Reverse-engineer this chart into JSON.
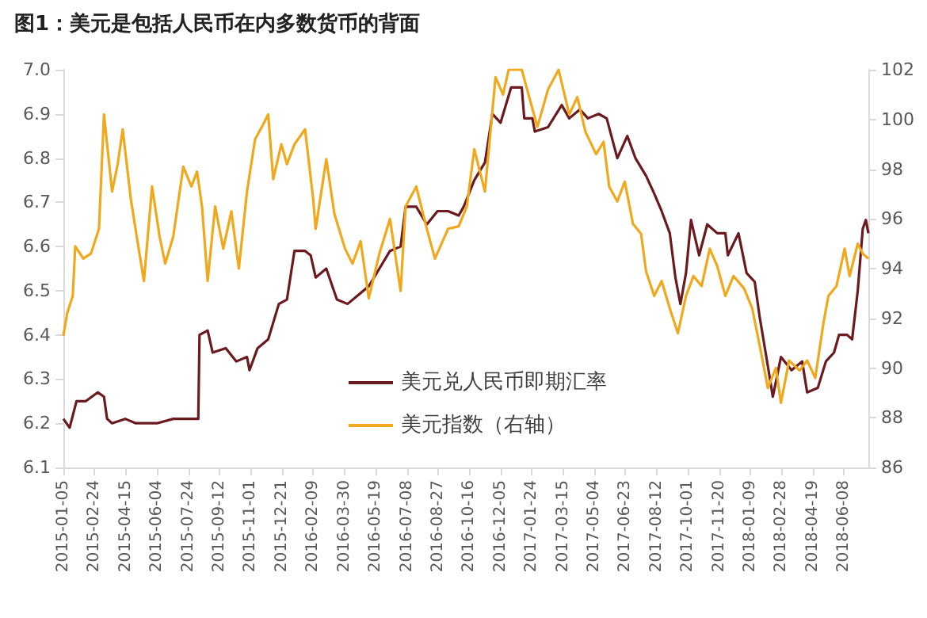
{
  "chart_data": {
    "type": "line",
    "title": "图1：美元是包括人民币在内多数货币的背面",
    "xlim": [
      "2015-01-05",
      "2018-07-17"
    ],
    "xticks": [
      "2015-01-05",
      "2015-02-24",
      "2015-04-15",
      "2015-06-04",
      "2015-07-24",
      "2015-09-12",
      "2015-11-01",
      "2015-12-21",
      "2016-02-09",
      "2016-03-30",
      "2016-05-19",
      "2016-07-08",
      "2016-08-27",
      "2016-10-16",
      "2016-12-05",
      "2017-01-24",
      "2017-03-15",
      "2017-05-04",
      "2017-06-23",
      "2017-08-12",
      "2017-10-01",
      "2017-11-20",
      "2018-01-09",
      "2018-02-28",
      "2018-04-19",
      "2018-06-08"
    ],
    "ylim": [
      6.1,
      7.0
    ],
    "yticks": [
      6.1,
      6.2,
      6.3,
      6.4,
      6.5,
      6.6,
      6.7,
      6.8,
      6.9,
      {
        "value": 7.0,
        "label": "7.0"
      }
    ],
    "y2lim": [
      86,
      102
    ],
    "y2ticks": [
      86,
      88,
      90,
      92,
      94,
      96,
      98,
      100,
      102
    ],
    "legend": "bottom",
    "grid": false,
    "marker": "none",
    "line_style": "solid",
    "series": [
      {
        "name": "美元兑人民币即期汇率",
        "color": "#6b1a1f",
        "x": [
          "2015-01-05",
          "2015-01-15",
          "2015-01-26",
          "2015-02-10",
          "2015-03-01",
          "2015-03-11",
          "2015-03-16",
          "2015-03-24",
          "2015-04-14",
          "2015-05-01",
          "2015-06-04",
          "2015-06-30",
          "2015-08-09",
          "2015-08-11",
          "2015-08-24",
          "2015-09-01",
          "2015-09-22",
          "2015-10-09",
          "2015-10-26",
          "2015-10-30",
          "2015-11-12",
          "2015-11-29",
          "2015-12-16",
          "2015-12-29",
          "2016-01-10",
          "2016-01-27",
          "2016-02-05",
          "2016-02-13",
          "2016-03-01",
          "2016-03-18",
          "2016-04-04",
          "2016-04-21",
          "2016-05-08",
          "2016-05-25",
          "2016-06-11",
          "2016-06-28",
          "2016-07-06",
          "2016-07-23",
          "2016-08-09",
          "2016-08-26",
          "2016-09-12",
          "2016-09-29",
          "2016-10-07",
          "2016-10-24",
          "2016-11-10",
          "2016-11-22",
          "2016-12-05",
          "2016-12-22",
          "2017-01-08",
          "2017-01-12",
          "2017-01-25",
          "2017-01-29",
          "2017-02-19",
          "2017-03-13",
          "2017-03-25",
          "2017-04-11",
          "2017-04-24",
          "2017-05-11",
          "2017-05-24",
          "2017-06-10",
          "2017-06-26",
          "2017-07-09",
          "2017-07-26",
          "2017-08-08",
          "2017-08-20",
          "2017-09-02",
          "2017-09-11",
          "2017-09-19",
          "2017-09-28",
          "2017-10-06",
          "2017-10-19",
          "2017-11-01",
          "2017-11-17",
          "2017-11-30",
          "2017-12-04",
          "2017-12-21",
          "2018-01-03",
          "2018-01-16",
          "2018-01-24",
          "2018-02-06",
          "2018-02-14",
          "2018-02-27",
          "2018-03-16",
          "2018-04-02",
          "2018-04-10",
          "2018-04-27",
          "2018-05-10",
          "2018-05-23",
          "2018-05-31",
          "2018-06-13",
          "2018-06-21",
          "2018-06-30",
          "2018-07-08",
          "2018-07-13",
          "2018-07-17"
        ],
        "values": [
          6.21,
          6.19,
          6.25,
          6.25,
          6.27,
          6.26,
          6.21,
          6.2,
          6.21,
          6.2,
          6.2,
          6.21,
          6.21,
          6.4,
          6.41,
          6.36,
          6.37,
          6.34,
          6.35,
          6.32,
          6.37,
          6.39,
          6.47,
          6.48,
          6.59,
          6.59,
          6.58,
          6.53,
          6.55,
          6.48,
          6.47,
          6.49,
          6.51,
          6.55,
          6.59,
          6.6,
          6.69,
          6.69,
          6.65,
          6.68,
          6.68,
          6.67,
          6.69,
          6.75,
          6.79,
          6.9,
          6.88,
          6.96,
          6.96,
          6.89,
          6.89,
          6.86,
          6.87,
          6.92,
          6.89,
          6.91,
          6.89,
          6.9,
          6.89,
          6.8,
          6.85,
          6.8,
          6.76,
          6.72,
          6.68,
          6.63,
          6.53,
          6.47,
          6.54,
          6.66,
          6.58,
          6.65,
          6.63,
          6.63,
          6.58,
          6.63,
          6.54,
          6.52,
          6.44,
          6.33,
          6.26,
          6.35,
          6.32,
          6.34,
          6.27,
          6.28,
          6.34,
          6.36,
          6.4,
          6.4,
          6.39,
          6.5,
          6.64,
          6.66,
          6.63
        ]
      },
      {
        "name": "美元指数（右轴）",
        "color": "#f0a81c",
        "axis": "y2",
        "x": [
          "2015-01-05",
          "2015-01-11",
          "2015-01-20",
          "2015-01-24",
          "2015-02-06",
          "2015-02-18",
          "2015-03-03",
          "2015-03-11",
          "2015-03-24",
          "2015-04-02",
          "2015-04-10",
          "2015-04-23",
          "2015-05-03",
          "2015-05-14",
          "2015-05-27",
          "2015-06-08",
          "2015-06-17",
          "2015-06-30",
          "2015-07-16",
          "2015-07-29",
          "2015-08-07",
          "2015-08-15",
          "2015-08-24",
          "2015-09-05",
          "2015-09-18",
          "2015-10-01",
          "2015-10-13",
          "2015-10-26",
          "2015-11-08",
          "2015-11-21",
          "2015-11-29",
          "2015-12-07",
          "2015-12-20",
          "2015-12-29",
          "2016-01-10",
          "2016-01-27",
          "2016-02-09",
          "2016-02-13",
          "2016-03-01",
          "2016-03-14",
          "2016-03-31",
          "2016-04-12",
          "2016-04-25",
          "2016-05-08",
          "2016-05-25",
          "2016-06-11",
          "2016-06-28",
          "2016-07-06",
          "2016-07-23",
          "2016-08-09",
          "2016-08-22",
          "2016-09-12",
          "2016-09-29",
          "2016-10-12",
          "2016-10-24",
          "2016-11-10",
          "2016-11-27",
          "2016-12-09",
          "2016-12-18",
          "2017-01-08",
          "2017-01-21",
          "2017-02-02",
          "2017-02-19",
          "2017-03-08",
          "2017-03-25",
          "2017-04-07",
          "2017-04-20",
          "2017-05-07",
          "2017-05-19",
          "2017-05-28",
          "2017-06-10",
          "2017-06-22",
          "2017-07-05",
          "2017-07-18",
          "2017-07-26",
          "2017-08-08",
          "2017-08-20",
          "2017-09-02",
          "2017-09-15",
          "2017-09-28",
          "2017-10-10",
          "2017-10-23",
          "2017-11-05",
          "2017-11-17",
          "2017-11-30",
          "2017-12-13",
          "2017-12-30",
          "2018-01-12",
          "2018-01-24",
          "2018-02-06",
          "2018-02-19",
          "2018-02-27",
          "2018-03-12",
          "2018-03-29",
          "2018-04-10",
          "2018-04-23",
          "2018-05-06",
          "2018-05-14",
          "2018-05-27",
          "2018-06-09",
          "2018-06-17",
          "2018-06-30",
          "2018-07-08",
          "2018-07-17"
        ],
        "values": [
          91.3,
          92.2,
          92.9,
          94.9,
          94.4,
          94.6,
          95.6,
          100.2,
          97.1,
          98.2,
          99.6,
          96.8,
          95.2,
          93.5,
          97.3,
          95.3,
          94.2,
          95.3,
          98.1,
          97.3,
          97.9,
          96.5,
          93.5,
          96.5,
          94.8,
          96.3,
          94.0,
          97.1,
          99.2,
          99.8,
          100.2,
          97.6,
          99.0,
          98.2,
          99.0,
          99.6,
          96.8,
          95.6,
          98.4,
          96.2,
          94.8,
          94.2,
          95.1,
          92.8,
          94.6,
          96.0,
          93.1,
          96.5,
          97.3,
          95.6,
          94.4,
          95.6,
          95.7,
          96.5,
          98.8,
          97.1,
          101.7,
          101.0,
          102.0,
          102.0,
          100.8,
          99.7,
          101.2,
          102.0,
          100.2,
          100.9,
          99.5,
          98.6,
          99.1,
          97.3,
          96.7,
          97.5,
          95.8,
          95.4,
          93.9,
          92.9,
          93.5,
          92.4,
          91.4,
          92.9,
          93.7,
          93.3,
          94.8,
          94.1,
          92.9,
          93.7,
          93.2,
          92.4,
          90.9,
          89.2,
          90.0,
          88.6,
          90.3,
          89.9,
          90.3,
          89.6,
          91.8,
          92.9,
          93.3,
          94.8,
          93.7,
          95.0,
          94.6,
          94.4
        ]
      }
    ]
  }
}
